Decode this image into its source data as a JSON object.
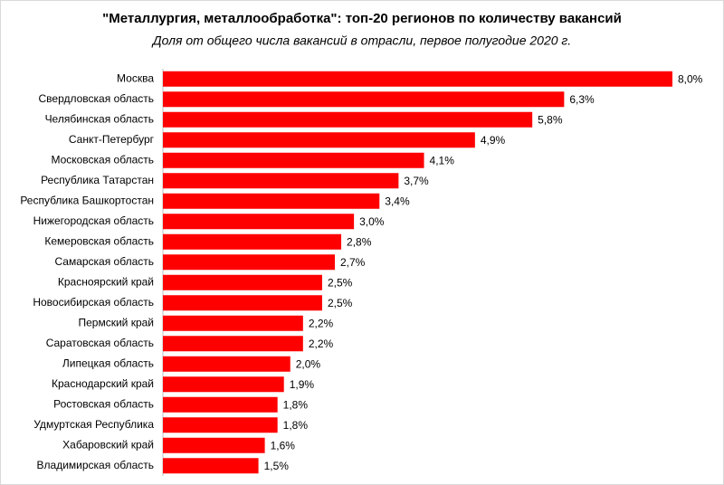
{
  "chart_data": {
    "type": "hbar",
    "title": "\"Металлургия, металлообработка\": топ-20 регионов по количеству вакансий",
    "subtitle": "Доля от общего числа вакансий в отрасли, первое полугодие 2020 г.",
    "categories": [
      "Москва",
      "Свердловская область",
      "Челябинская область",
      "Санкт-Петербург",
      "Московская область",
      "Республика Татарстан",
      "Республика Башкортостан",
      "Нижегородская область",
      "Кемеровская область",
      "Самарская область",
      "Красноярский край",
      "Новосибирская область",
      "Пермский край",
      "Саратовская область",
      "Липецкая область",
      "Краснодарский край",
      "Ростовская область",
      "Удмуртская Республика",
      "Хабаровский край",
      "Владимирская область"
    ],
    "values": [
      8.0,
      6.3,
      5.8,
      4.9,
      4.1,
      3.7,
      3.4,
      3.0,
      2.8,
      2.7,
      2.5,
      2.5,
      2.2,
      2.2,
      2.0,
      1.9,
      1.8,
      1.8,
      1.6,
      1.5
    ],
    "value_labels": [
      "8,0%",
      "6,3%",
      "5,8%",
      "4,9%",
      "4,1%",
      "3,7%",
      "3,4%",
      "3,0%",
      "2,8%",
      "2,7%",
      "2,5%",
      "2,5%",
      "2,2%",
      "2,2%",
      "2,0%",
      "1,9%",
      "1,8%",
      "1,8%",
      "1,6%",
      "1,5%"
    ],
    "color": "#ff0000",
    "xlim": [
      0,
      8
    ]
  }
}
